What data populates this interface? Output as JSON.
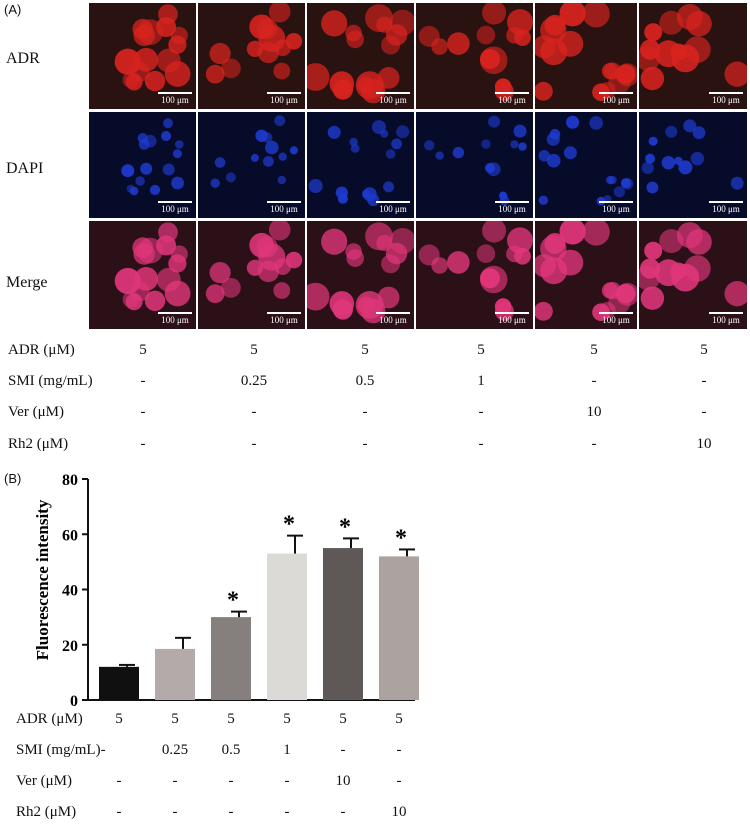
{
  "panel_a": {
    "label": "(A)",
    "row_labels": [
      "ADR",
      "DAPI",
      "Merge"
    ],
    "scale_bar_text": "100 μm",
    "table": {
      "rows": [
        {
          "label": "ADR (μM)",
          "values": [
            "5",
            "5",
            "5",
            "5",
            "5",
            "5"
          ]
        },
        {
          "label": "SMI (mg/mL)",
          "values": [
            "-",
            "0.25",
            "0.5",
            "1",
            "-",
            "-"
          ]
        },
        {
          "label": "Ver (μM)",
          "values": [
            "-",
            "-",
            "-",
            "-",
            "10",
            "-"
          ]
        },
        {
          "label": "Rh2 (μM)",
          "values": [
            "-",
            "-",
            "-",
            "-",
            "-",
            "10"
          ]
        }
      ]
    },
    "colors": {
      "adr": "#d8231f",
      "dapi": "#1f3bd0",
      "merge": "#e0367a"
    }
  },
  "panel_b": {
    "label": "(B)",
    "table": {
      "rows": [
        {
          "label": "ADR (μM)",
          "values": [
            "5",
            "5",
            "5",
            "5",
            "5",
            "5"
          ]
        },
        {
          "label": "SMI (mg/mL)-",
          "values": [
            "",
            "0.25",
            "0.5",
            "1",
            "-",
            "-"
          ]
        },
        {
          "label": "Ver (μM)",
          "values": [
            "-",
            "-",
            "-",
            "-",
            "10",
            "-"
          ]
        },
        {
          "label": "Rh2 (μM)",
          "values": [
            "-",
            "-",
            "-",
            "-",
            "-",
            "10"
          ]
        }
      ]
    }
  },
  "chart_data": {
    "type": "bar",
    "ylabel": "Fluorescence intensity",
    "ylim": [
      0,
      80
    ],
    "yticks": [
      "0",
      "20",
      "40",
      "60",
      "80"
    ],
    "values": [
      12,
      18.5,
      30,
      53,
      55,
      52
    ],
    "errors": [
      0.7,
      4,
      2,
      6.5,
      3.5,
      2.5
    ],
    "significance": [
      "",
      "",
      "*",
      "*",
      "*",
      "*"
    ],
    "colors": [
      "#101010",
      "#b5aaaa",
      "#857f7e",
      "#dcdad6",
      "#5e5857",
      "#aca3a1"
    ]
  }
}
